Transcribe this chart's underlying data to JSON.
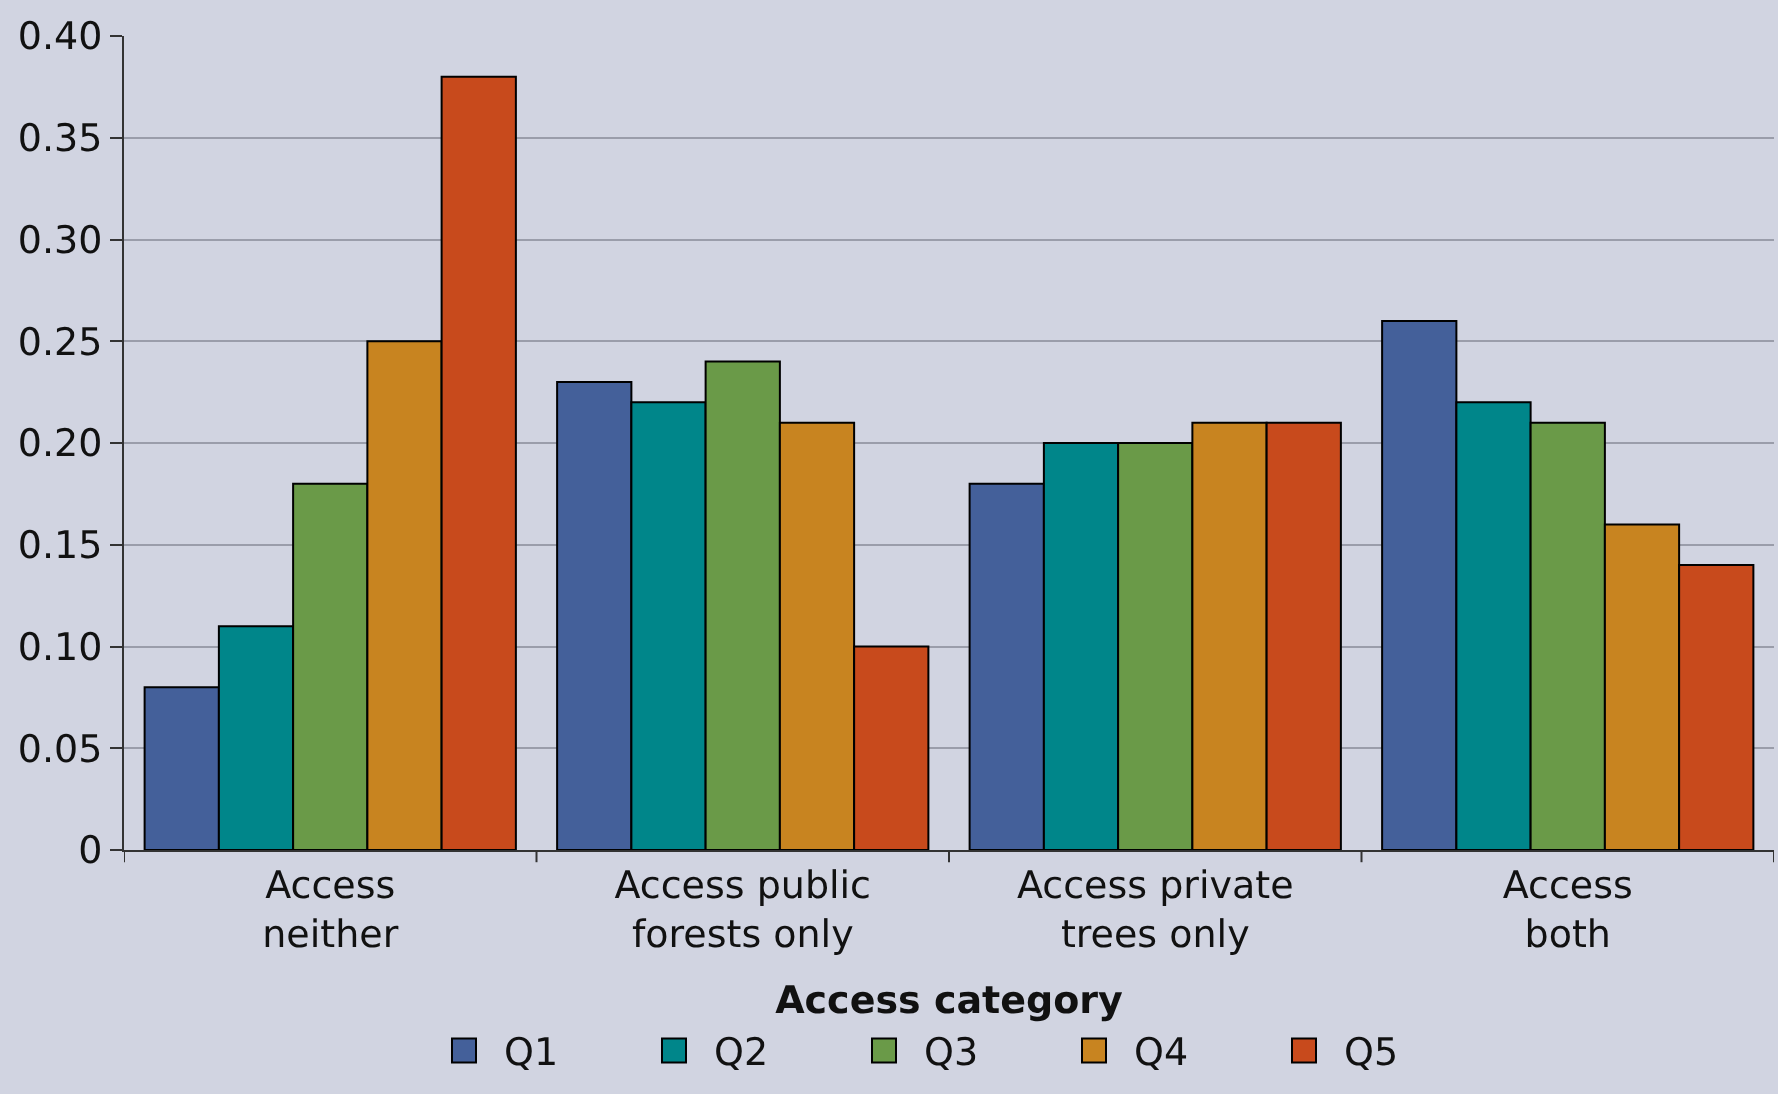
{
  "chart_data": {
    "type": "bar",
    "xlabel": "Access category",
    "categories": [
      "Access\nneither",
      "Access public\nforests only",
      "Access private\ntrees only",
      "Access\nboth"
    ],
    "series": [
      {
        "name": "Q1",
        "color": "#44609a",
        "values": [
          0.08,
          0.23,
          0.18,
          0.26
        ]
      },
      {
        "name": "Q2",
        "color": "#00868a",
        "values": [
          0.11,
          0.22,
          0.2,
          0.22
        ]
      },
      {
        "name": "Q3",
        "color": "#6a9a48",
        "values": [
          0.18,
          0.24,
          0.2,
          0.21
        ]
      },
      {
        "name": "Q4",
        "color": "#c88420",
        "values": [
          0.25,
          0.21,
          0.21,
          0.16
        ]
      },
      {
        "name": "Q5",
        "color": "#c84a1c",
        "values": [
          0.38,
          0.1,
          0.21,
          0.14
        ]
      }
    ],
    "ylim": [
      0,
      0.4
    ],
    "yticks": [
      {
        "value": 0,
        "label": "0"
      },
      {
        "value": 0.05,
        "label": "0.05"
      },
      {
        "value": 0.1,
        "label": "0.10"
      },
      {
        "value": 0.15,
        "label": "0.15"
      },
      {
        "value": 0.2,
        "label": "0.20"
      },
      {
        "value": 0.25,
        "label": "0.25"
      },
      {
        "value": 0.3,
        "label": "0.30"
      },
      {
        "value": 0.35,
        "label": "0.35"
      },
      {
        "value": 0.4,
        "label": "0.40"
      }
    ],
    "grid": "y",
    "legend": "bottom"
  }
}
